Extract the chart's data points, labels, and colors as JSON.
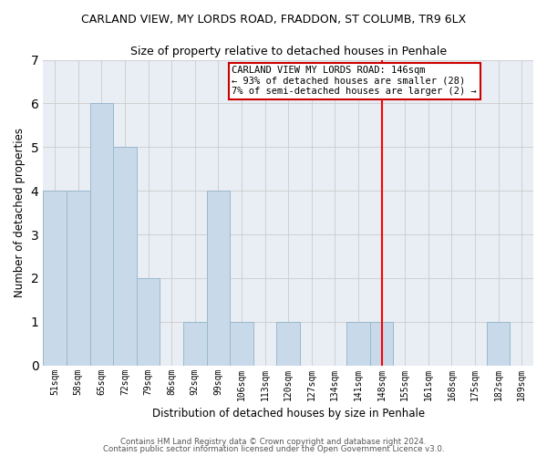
{
  "title": "CARLAND VIEW, MY LORDS ROAD, FRADDON, ST COLUMB, TR9 6LX",
  "subtitle": "Size of property relative to detached houses in Penhale",
  "xlabel": "Distribution of detached houses by size in Penhale",
  "ylabel": "Number of detached properties",
  "footer_line1": "Contains HM Land Registry data © Crown copyright and database right 2024.",
  "footer_line2": "Contains public sector information licensed under the Open Government Licence v3.0.",
  "bin_labels": [
    "51sqm",
    "58sqm",
    "65sqm",
    "72sqm",
    "79sqm",
    "86sqm",
    "92sqm",
    "99sqm",
    "106sqm",
    "113sqm",
    "120sqm",
    "127sqm",
    "134sqm",
    "141sqm",
    "148sqm",
    "155sqm",
    "161sqm",
    "168sqm",
    "175sqm",
    "182sqm",
    "189sqm"
  ],
  "bar_values": [
    4,
    4,
    6,
    5,
    2,
    0,
    1,
    4,
    1,
    0,
    1,
    0,
    0,
    1,
    1,
    0,
    0,
    0,
    0,
    1,
    0
  ],
  "bar_color": "#c8daea",
  "bar_edge_color": "#9ab8cc",
  "vline_x": 14,
  "vline_color": "red",
  "ylim": [
    0,
    7
  ],
  "yticks": [
    0,
    1,
    2,
    3,
    4,
    5,
    6,
    7
  ],
  "annotation_title": "CARLAND VIEW MY LORDS ROAD: 146sqm",
  "annotation_line1": "← 93% of detached houses are smaller (28)",
  "annotation_line2": "7% of semi-detached houses are larger (2) →",
  "grid_color": "#cccccc",
  "background_color": "#ffffff",
  "plot_bg_color": "#e8eef4"
}
